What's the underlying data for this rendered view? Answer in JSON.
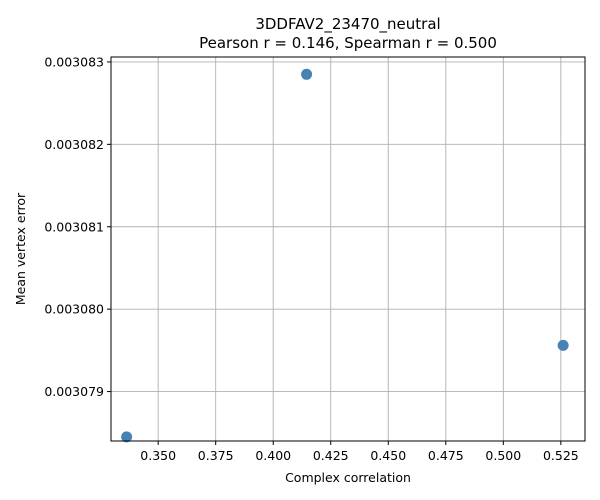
{
  "chart_data": {
    "type": "scatter",
    "title": "3DDFAV2_23470_neutral",
    "subtitle": "Pearson r = 0.146, Spearman r = 0.500",
    "xlabel": "Complex correlation",
    "ylabel": "Mean vertex error",
    "xlim": [
      0.3295,
      0.5355
    ],
    "ylim": [
      0.0030784,
      0.00308306
    ],
    "xticks": [
      0.35,
      0.375,
      0.4,
      0.425,
      0.45,
      0.475,
      0.5,
      0.525
    ],
    "xtick_labels": [
      "0.350",
      "0.375",
      "0.400",
      "0.425",
      "0.450",
      "0.475",
      "0.500",
      "0.525"
    ],
    "yticks": [
      0.003079,
      0.00308,
      0.003081,
      0.003082,
      0.003083
    ],
    "ytick_labels": [
      "0.003079",
      "0.003080",
      "0.003081",
      "0.003082",
      "0.003083"
    ],
    "grid": true,
    "point_color": "#4682b4",
    "points": [
      {
        "x": 0.3363,
        "y": 0.00307845
      },
      {
        "x": 0.4145,
        "y": 0.00308285
      },
      {
        "x": 0.526,
        "y": 0.00307956
      }
    ]
  }
}
